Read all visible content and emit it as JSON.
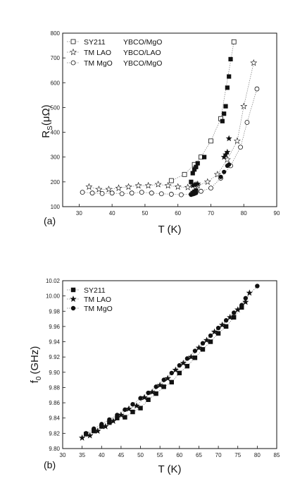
{
  "chart_data": [
    {
      "type": "scatter",
      "panel_label": "(a)",
      "xlabel": "T (K)",
      "ylabel": "R",
      "ylabel_sub": "S",
      "ylabel_unit": "(μΩ)",
      "xlim": [
        25,
        90
      ],
      "ylim": [
        100,
        800
      ],
      "xticks": [
        30,
        40,
        50,
        60,
        70,
        80,
        90
      ],
      "yticks": [
        100,
        200,
        300,
        400,
        500,
        600,
        700,
        800
      ],
      "legend_position": "top-left",
      "series": [
        {
          "name": "SY211",
          "film": "YBCO/MgO",
          "marker": "square",
          "points_open": [
            [
              58,
              205
            ],
            [
              62,
              230
            ],
            [
              65,
              270
            ],
            [
              67,
              300
            ],
            [
              70,
              365
            ],
            [
              73,
              455
            ],
            [
              77,
              765
            ]
          ],
          "points_filled": [
            [
              64,
              200
            ],
            [
              64.5,
              235
            ],
            [
              65,
              250
            ],
            [
              65.5,
              260
            ],
            [
              66,
              275
            ],
            [
              68,
              300
            ],
            [
              73.5,
              445
            ],
            [
              74,
              475
            ],
            [
              74.5,
              505
            ],
            [
              75,
              580
            ],
            [
              75.5,
              625
            ],
            [
              76,
              695
            ],
            [
              64.5,
              155
            ],
            [
              65,
              160
            ],
            [
              65.5,
              165
            ]
          ]
        },
        {
          "name": "TM LAO",
          "film": "YBCO/LAO",
          "marker": "star",
          "points_open": [
            [
              33,
              180
            ],
            [
              36,
              170
            ],
            [
              39,
              170
            ],
            [
              42,
              175
            ],
            [
              45,
              180
            ],
            [
              48,
              185
            ],
            [
              51,
              185
            ],
            [
              54,
              190
            ],
            [
              57,
              185
            ],
            [
              60,
              180
            ],
            [
              63,
              178
            ],
            [
              66,
              185
            ],
            [
              69,
              200
            ],
            [
              72,
              230
            ],
            [
              75,
              290
            ],
            [
              78,
              365
            ],
            [
              80,
              505
            ],
            [
              83,
              680
            ]
          ],
          "points_filled": [
            [
              64.5,
              185
            ],
            [
              65,
              188
            ],
            [
              65.5,
              190
            ],
            [
              66,
              192
            ],
            [
              74,
              300
            ],
            [
              74.5,
              310
            ],
            [
              75,
              320
            ],
            [
              75.5,
              375
            ]
          ]
        },
        {
          "name": "TM MgO",
          "film": "YBCO/MgO",
          "marker": "circle",
          "points_open": [
            [
              31,
              158
            ],
            [
              34,
              155
            ],
            [
              37,
              153
            ],
            [
              40,
              155
            ],
            [
              43,
              152
            ],
            [
              46,
              155
            ],
            [
              49,
              158
            ],
            [
              52,
              155
            ],
            [
              55,
              152
            ],
            [
              58,
              150
            ],
            [
              61,
              148
            ],
            [
              64,
              150
            ],
            [
              67,
              162
            ],
            [
              70,
              175
            ],
            [
              73,
              215
            ],
            [
              76,
              265
            ],
            [
              79,
              340
            ],
            [
              81,
              440
            ],
            [
              84,
              575
            ]
          ],
          "points_filled": [
            [
              64,
              148
            ],
            [
              64.5,
              150
            ],
            [
              65,
              152
            ],
            [
              65.5,
              155
            ],
            [
              73,
              220
            ],
            [
              74,
              240
            ],
            [
              75,
              265
            ],
            [
              75.5,
              270
            ]
          ]
        }
      ]
    },
    {
      "type": "scatter",
      "panel_label": "(b)",
      "xlabel": "T (K)",
      "ylabel": "f",
      "ylabel_sub": "0",
      "ylabel_unit": "(GHz)",
      "xlim": [
        30,
        85
      ],
      "ylim": [
        9.8,
        10.02
      ],
      "xticks": [
        30,
        35,
        40,
        45,
        50,
        55,
        60,
        65,
        70,
        75,
        80,
        85
      ],
      "yticks": [
        "9.80",
        "9.82",
        "9.84",
        "9.86",
        "9.88",
        "9.90",
        "9.92",
        "9.94",
        "9.96",
        "9.98",
        "10.00",
        "10.02"
      ],
      "legend_position": "top-left",
      "series": [
        {
          "name": "SY211",
          "marker": "square",
          "points": [
            [
              36,
              9.819
            ],
            [
              38,
              9.823
            ],
            [
              40,
              9.829
            ],
            [
              42,
              9.834
            ],
            [
              44,
              9.84
            ],
            [
              46,
              9.841
            ],
            [
              48,
              9.848
            ],
            [
              50,
              9.853
            ],
            [
              52,
              9.864
            ],
            [
              54,
              9.872
            ],
            [
              56,
              9.881
            ],
            [
              58,
              9.887
            ],
            [
              60,
              9.899
            ],
            [
              62,
              9.908
            ],
            [
              64,
              9.919
            ],
            [
              66,
              9.93
            ],
            [
              68,
              9.94
            ],
            [
              70,
              9.951
            ],
            [
              72,
              9.96
            ],
            [
              74,
              9.972
            ],
            [
              76,
              9.985
            ]
          ]
        },
        {
          "name": "TM LAO",
          "marker": "star",
          "points": [
            [
              35,
              9.814
            ],
            [
              37,
              9.817
            ],
            [
              39,
              9.823
            ],
            [
              41,
              9.829
            ],
            [
              43,
              9.836
            ],
            [
              45,
              9.844
            ],
            [
              47,
              9.852
            ],
            [
              49,
              9.856
            ],
            [
              51,
              9.867
            ],
            [
              53,
              9.874
            ],
            [
              55,
              9.883
            ],
            [
              57,
              9.892
            ],
            [
              59,
              9.903
            ],
            [
              61,
              9.912
            ],
            [
              63,
              9.92
            ],
            [
              65,
              9.932
            ],
            [
              67,
              9.942
            ],
            [
              69,
              9.953
            ],
            [
              71,
              9.962
            ],
            [
              73,
              9.972
            ],
            [
              75,
              9.982
            ],
            [
              77,
              9.992
            ],
            [
              78,
              10.004
            ]
          ]
        },
        {
          "name": "TM MgO",
          "marker": "circle",
          "points": [
            [
              36,
              9.82
            ],
            [
              38,
              9.826
            ],
            [
              40,
              9.832
            ],
            [
              42,
              9.838
            ],
            [
              44,
              9.844
            ],
            [
              46,
              9.851
            ],
            [
              48,
              9.858
            ],
            [
              50,
              9.866
            ],
            [
              52,
              9.873
            ],
            [
              54,
              9.881
            ],
            [
              56,
              9.89
            ],
            [
              58,
              9.899
            ],
            [
              60,
              9.909
            ],
            [
              62,
              9.918
            ],
            [
              64,
              9.928
            ],
            [
              66,
              9.938
            ],
            [
              68,
              9.948
            ],
            [
              70,
              9.958
            ],
            [
              72,
              9.968
            ],
            [
              74,
              9.978
            ],
            [
              76,
              9.988
            ],
            [
              77,
              9.997
            ],
            [
              80,
              10.013
            ]
          ]
        }
      ]
    }
  ]
}
